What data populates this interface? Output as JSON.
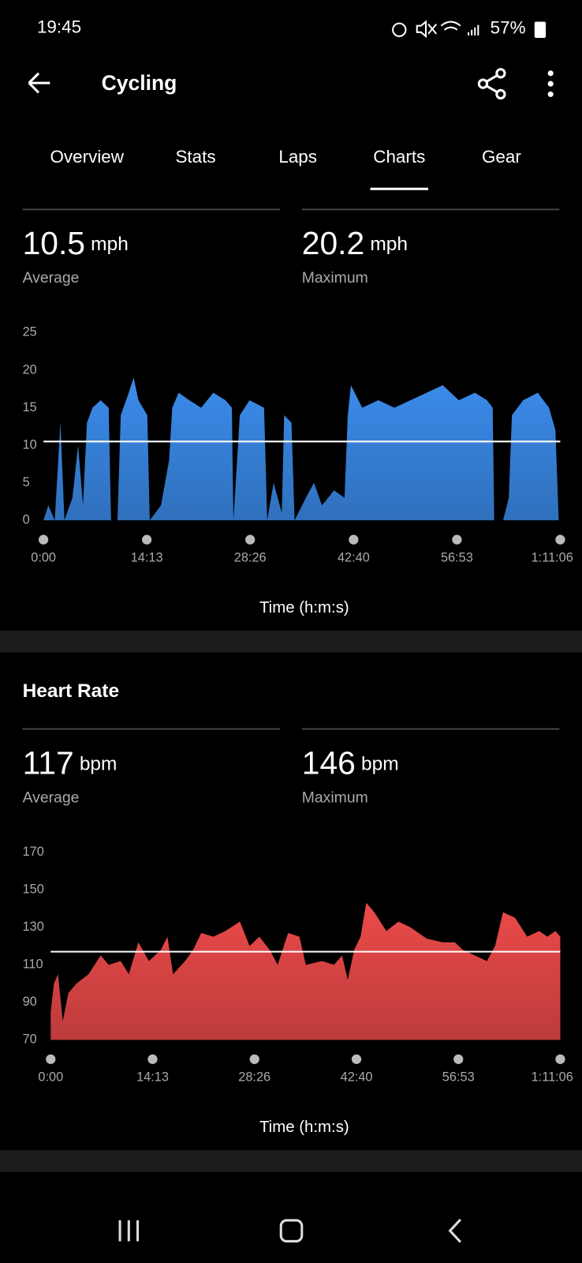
{
  "status_bar": {
    "time": "19:45",
    "battery": "57%"
  },
  "header": {
    "title": "Cycling"
  },
  "tabs": {
    "items": [
      "Overview",
      "Stats",
      "Laps",
      "Charts",
      "Gear"
    ],
    "selected_index": 3
  },
  "chart_data": [
    {
      "type": "area",
      "color": "#3b8ceb",
      "stats": [
        {
          "value": 10.5,
          "unit": "mph",
          "label": "Average"
        },
        {
          "value": 20.2,
          "unit": "mph",
          "label": "Maximum"
        }
      ],
      "xlabel": "Time (h:m:s)",
      "x": [
        0,
        40,
        93,
        140,
        173,
        239,
        286,
        326,
        359,
        405,
        472,
        538,
        558,
        611,
        638,
        704,
        744,
        784,
        857,
        877,
        970,
        1037,
        1063,
        1116,
        1203,
        1302,
        1402,
        1502,
        1555,
        1568,
        1621,
        1701,
        1821,
        1847,
        1900,
        1967,
        1987,
        2047,
        2073,
        2166,
        2233,
        2299,
        2399,
        2485,
        2512,
        2538,
        2631,
        2764,
        2897,
        3030,
        3163,
        3296,
        3429,
        3561,
        3661,
        3708,
        3721,
        3794,
        3841,
        3867,
        3960,
        4080,
        4173,
        4226,
        4253
      ],
      "values": [
        0,
        2,
        0,
        13,
        0,
        3,
        10,
        2,
        13,
        15,
        16,
        15,
        0,
        0,
        14,
        17,
        19,
        16,
        14,
        0,
        2,
        8,
        15,
        17,
        16,
        15,
        17,
        16,
        15,
        0,
        14,
        16,
        15,
        0,
        5,
        1,
        14,
        13,
        0,
        3,
        5,
        2,
        4,
        3,
        14,
        18,
        15,
        16,
        15,
        16,
        17,
        18,
        16,
        17,
        16,
        15,
        0,
        0,
        3,
        14,
        16,
        17,
        15,
        12,
        0
      ],
      "xlim": [
        0,
        4266
      ],
      "xticks": [
        {
          "value": 0,
          "label": "0:00"
        },
        {
          "value": 853,
          "label": "14:13"
        },
        {
          "value": 1706,
          "label": "28:26"
        },
        {
          "value": 2560,
          "label": "42:40"
        },
        {
          "value": 3413,
          "label": "56:53"
        },
        {
          "value": 4266,
          "label": "1:11:06"
        }
      ],
      "ylim": [
        0,
        25
      ],
      "yticks": [
        0,
        5,
        10,
        15,
        20,
        25
      ]
    },
    {
      "type": "area",
      "title": "Heart Rate",
      "color": "#ec4a4a",
      "stats": [
        {
          "value": 117,
          "unit": "bpm",
          "label": "Average"
        },
        {
          "value": 146,
          "unit": "bpm",
          "label": "Maximum"
        }
      ],
      "xlabel": "Time (h:m:s)",
      "x": [
        0,
        27,
        61,
        101,
        148,
        216,
        317,
        418,
        485,
        586,
        654,
        734,
        822,
        923,
        977,
        1024,
        1125,
        1193,
        1260,
        1361,
        1462,
        1584,
        1665,
        1746,
        1833,
        1900,
        1988,
        2082,
        2136,
        2271,
        2372,
        2439,
        2487,
        2541,
        2594,
        2642,
        2709,
        2810,
        2911,
        3012,
        3147,
        3282,
        3383,
        3450,
        3551,
        3652,
        3720,
        3787,
        3888,
        3989,
        4090,
        4158,
        4225,
        4266
      ],
      "values": [
        85,
        100,
        105,
        80,
        95,
        100,
        105,
        115,
        110,
        112,
        105,
        122,
        112,
        118,
        125,
        105,
        112,
        118,
        127,
        125,
        128,
        133,
        120,
        125,
        118,
        110,
        127,
        125,
        110,
        112,
        110,
        115,
        102,
        118,
        125,
        143,
        138,
        128,
        133,
        130,
        124,
        122,
        122,
        118,
        115,
        112,
        120,
        138,
        135,
        125,
        128,
        125,
        128,
        125
      ],
      "xlim": [
        0,
        4266
      ],
      "xticks": [
        {
          "value": 0,
          "label": "0:00"
        },
        {
          "value": 853,
          "label": "14:13"
        },
        {
          "value": 1706,
          "label": "28:26"
        },
        {
          "value": 2560,
          "label": "42:40"
        },
        {
          "value": 3413,
          "label": "56:53"
        },
        {
          "value": 4266,
          "label": "1:11:06"
        }
      ],
      "ylim": [
        70,
        170
      ],
      "yticks": [
        70,
        90,
        110,
        130,
        150,
        170
      ]
    }
  ]
}
